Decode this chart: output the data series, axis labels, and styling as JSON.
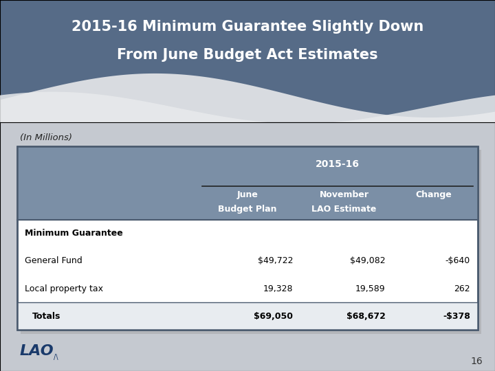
{
  "title_line1": "2015-16 Minimum Guarantee Slightly Down",
  "title_line2": "From June Budget Act Estimates",
  "subtitle": "(In Millions)",
  "page_number": "16",
  "header_year": "2015-16",
  "col_headers_line1": [
    "June",
    "November",
    "Change"
  ],
  "col_headers_line2": [
    "Budget Plan",
    "LAO Estimate",
    ""
  ],
  "row_labels": [
    "Minimum Guarantee",
    "General Fund",
    "Local property tax",
    "Totals"
  ],
  "col1_values": [
    "",
    "$49,722",
    "19,328",
    "$69,050"
  ],
  "col2_values": [
    "",
    "$49,082",
    "19,589",
    "$68,672"
  ],
  "col3_values": [
    "",
    "-$640",
    "262",
    "-$378"
  ],
  "bg_top_color": "#566b87",
  "bg_bottom_color": "#c5c9d0",
  "table_header_bg": "#7b8fa6",
  "table_border_color": "#4a5a6e",
  "title_color": "#ffffff",
  "subtitle_color": "#222222",
  "lao_color": "#1a3a6b",
  "wave1_color": "#d8dbe0",
  "wave2_color": "#e8eaec"
}
